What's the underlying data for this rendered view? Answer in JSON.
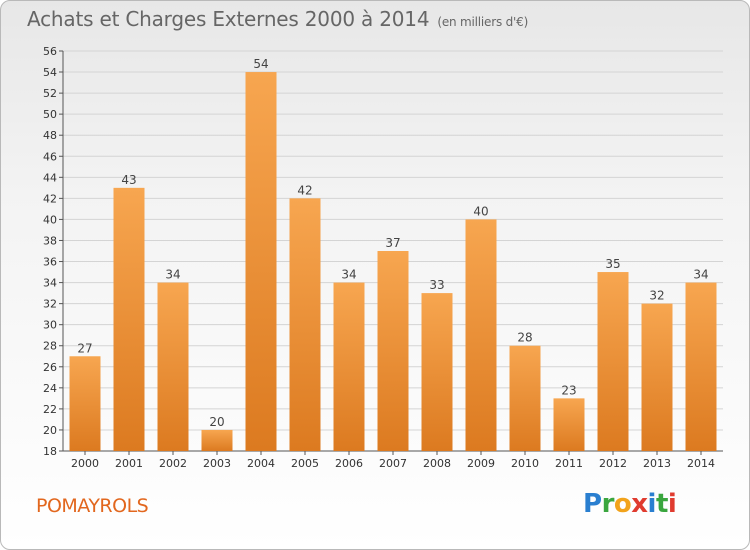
{
  "title": "Achats et Charges Externes 2000 à 2014",
  "subtitle": "(en milliers d'€)",
  "commune": "POMAYROLS",
  "logo": {
    "letters": [
      "P",
      "r",
      "o",
      "x",
      "i",
      "t",
      "i"
    ],
    "colors": [
      "#2a7fd0",
      "#3aa63f",
      "#f2a31b",
      "#e03b2f",
      "#2a7fd0",
      "#3aa63f",
      "#e03b2f"
    ]
  },
  "colors": {
    "bar_light": "#f7a650",
    "bar_dark": "#dc7a20",
    "title": "#666666",
    "commune": "#e2671e"
  },
  "chart_data": {
    "type": "bar",
    "categories": [
      "2000",
      "2001",
      "2002",
      "2003",
      "2004",
      "2005",
      "2006",
      "2007",
      "2008",
      "2009",
      "2010",
      "2011",
      "2012",
      "2013",
      "2014"
    ],
    "values": [
      27,
      43,
      34,
      20,
      54,
      42,
      34,
      37,
      33,
      40,
      28,
      23,
      35,
      32,
      34
    ],
    "ylim": [
      18,
      56
    ],
    "yticks": [
      18,
      20,
      22,
      24,
      26,
      28,
      30,
      32,
      34,
      36,
      38,
      40,
      42,
      44,
      46,
      48,
      50,
      52,
      54,
      56
    ],
    "grid": true,
    "data_labels": true
  }
}
